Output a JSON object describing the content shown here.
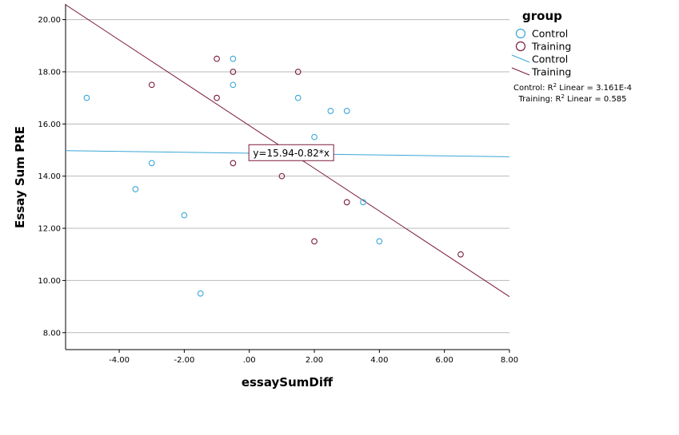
{
  "chart_data": {
    "type": "scatter",
    "xlabel": "essaySumDiff",
    "ylabel": "Essay Sum PRE",
    "xlim": [
      -5.65,
      8.0
    ],
    "ylim": [
      7.35,
      20.6
    ],
    "x_ticks": [
      -4,
      -2,
      0,
      2,
      4,
      6,
      8
    ],
    "x_tick_labels": [
      "-4.00",
      "-2.00",
      ".00",
      "2.00",
      "4.00",
      "6.00",
      "8.00"
    ],
    "y_ticks": [
      8,
      10,
      12,
      14,
      16,
      18,
      20
    ],
    "y_tick_labels": [
      "8.00",
      "10.00",
      "12.00",
      "14.00",
      "16.00",
      "18.00",
      "20.00"
    ],
    "grid": "horizontal",
    "legend": {
      "title": "group",
      "position": "right",
      "items": [
        {
          "label": "Control",
          "kind": "marker",
          "series": "Control"
        },
        {
          "label": "Training",
          "kind": "marker",
          "series": "Training"
        },
        {
          "label": "Control",
          "kind": "line",
          "series": "Control"
        },
        {
          "label": "Training",
          "kind": "line",
          "series": "Training"
        }
      ]
    },
    "r2_annotations": [
      {
        "prefix": "Control: R",
        "sup": "2",
        "suffix": " Linear = 3.161E-4"
      },
      {
        "prefix": "Training: R",
        "sup": "2",
        "suffix": " Linear = 0.585"
      }
    ],
    "equation_label": {
      "text": "y=15.94-0.82*x",
      "anchor_x": 1.29,
      "anchor_y": 14.9
    },
    "series": [
      {
        "name": "Control",
        "color": "#3aa6d6",
        "points": [
          {
            "x": -5.0,
            "y": 17.0
          },
          {
            "x": -3.5,
            "y": 13.5
          },
          {
            "x": -3.0,
            "y": 14.5
          },
          {
            "x": -2.0,
            "y": 12.5
          },
          {
            "x": -1.5,
            "y": 9.5
          },
          {
            "x": -0.5,
            "y": 18.5
          },
          {
            "x": -0.5,
            "y": 17.5
          },
          {
            "x": 1.5,
            "y": 17.0
          },
          {
            "x": 2.0,
            "y": 15.5
          },
          {
            "x": 2.5,
            "y": 16.5
          },
          {
            "x": 3.0,
            "y": 16.5
          },
          {
            "x": 3.5,
            "y": 13.0
          },
          {
            "x": 4.0,
            "y": 11.5
          }
        ],
        "fit": {
          "intercept": 14.88,
          "slope": -0.017
        }
      },
      {
        "name": "Training",
        "color": "#7b1c3a",
        "points": [
          {
            "x": -3.0,
            "y": 17.5
          },
          {
            "x": -1.0,
            "y": 18.5
          },
          {
            "x": -1.0,
            "y": 17.0
          },
          {
            "x": -0.5,
            "y": 18.0
          },
          {
            "x": -0.5,
            "y": 14.5
          },
          {
            "x": 1.0,
            "y": 14.0
          },
          {
            "x": 1.5,
            "y": 18.0
          },
          {
            "x": 2.0,
            "y": 11.5
          },
          {
            "x": 3.0,
            "y": 13.0
          },
          {
            "x": 6.5,
            "y": 11.0
          }
        ],
        "fit": {
          "intercept": 15.94,
          "slope": -0.82
        }
      }
    ]
  }
}
